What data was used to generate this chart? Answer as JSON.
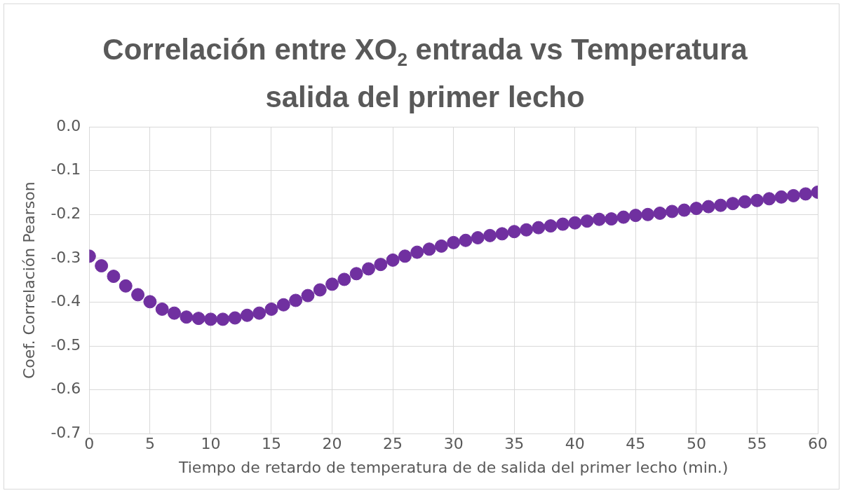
{
  "chart_data": {
    "type": "scatter",
    "title": "Correlación entre XO$_{2}$ entrada vs Temperatura salida del primer lecho",
    "xlabel": "Tiempo de retardo de temperatura de de salida del primer lecho (min.)",
    "ylabel": "Coef. Correlación Pearson",
    "x": [
      0,
      1,
      2,
      3,
      4,
      5,
      6,
      7,
      8,
      9,
      10,
      11,
      12,
      13,
      14,
      15,
      16,
      17,
      18,
      19,
      20,
      21,
      22,
      23,
      24,
      25,
      26,
      27,
      28,
      29,
      30,
      31,
      32,
      33,
      34,
      35,
      36,
      37,
      38,
      39,
      40,
      41,
      42,
      43,
      44,
      45,
      46,
      47,
      48,
      49,
      50,
      51,
      52,
      53,
      54,
      55,
      56,
      57,
      58,
      59,
      60
    ],
    "series": [
      {
        "color": "#7030a0",
        "values": [
          -0.295,
          -0.317,
          -0.341,
          -0.363,
          -0.383,
          -0.399,
          -0.416,
          -0.425,
          -0.434,
          -0.437,
          -0.439,
          -0.439,
          -0.436,
          -0.43,
          -0.425,
          -0.416,
          -0.406,
          -0.396,
          -0.385,
          -0.372,
          -0.359,
          -0.348,
          -0.335,
          -0.324,
          -0.314,
          -0.304,
          -0.295,
          -0.286,
          -0.279,
          -0.272,
          -0.264,
          -0.259,
          -0.253,
          -0.248,
          -0.244,
          -0.239,
          -0.235,
          -0.23,
          -0.226,
          -0.222,
          -0.219,
          -0.215,
          -0.211,
          -0.21,
          -0.206,
          -0.202,
          -0.2,
          -0.197,
          -0.193,
          -0.19,
          -0.186,
          -0.182,
          -0.179,
          -0.175,
          -0.171,
          -0.168,
          -0.164,
          -0.16,
          -0.157,
          -0.153,
          -0.149
        ]
      }
    ],
    "xlim": [
      0,
      60
    ],
    "xticks": [
      0,
      5,
      10,
      15,
      20,
      25,
      30,
      35,
      40,
      45,
      50,
      55,
      60
    ],
    "ylim": [
      -0.7,
      0
    ],
    "yticks": [
      {
        "value": -0.7,
        "label": "-0.7"
      },
      {
        "value": -0.6,
        "label": "-0.6"
      },
      {
        "value": -0.5,
        "label": "-0.5"
      },
      {
        "value": -0.4,
        "label": "-0.4"
      },
      {
        "value": -0.3,
        "label": "-0.3"
      },
      {
        "value": -0.2,
        "label": "-0.2"
      },
      {
        "value": -0.1,
        "label": "-0.1"
      },
      {
        "value": 0,
        "label": "0.0"
      }
    ],
    "grid": true,
    "marker": "circle",
    "legend": false
  }
}
